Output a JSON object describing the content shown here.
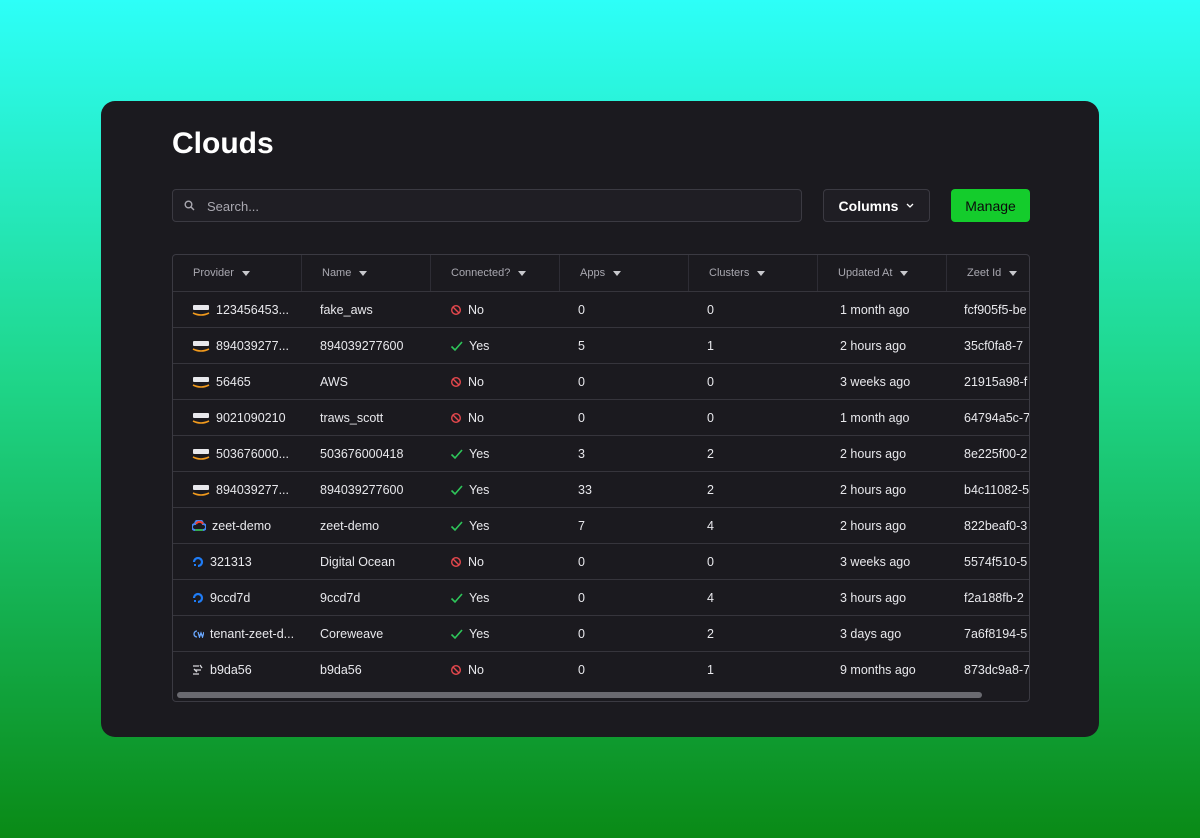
{
  "header": {
    "title": "Clouds"
  },
  "toolbar": {
    "search_placeholder": "Search...",
    "columns_button": "Columns",
    "manage_button": "Manage"
  },
  "table": {
    "columns": [
      "Provider",
      "Name",
      "Connected?",
      "Apps",
      "Clusters",
      "Updated At",
      "Zeet Id"
    ],
    "rows": [
      [
        "123456453...",
        "fake_aws",
        "No",
        0,
        0,
        "1 month ago",
        "fcf905f5-be"
      ],
      [
        "894039277...",
        "894039277600",
        "Yes",
        5,
        1,
        "2 hours ago",
        "35cf0fa8-7"
      ],
      [
        "56465",
        "AWS",
        "No",
        0,
        0,
        "3 weeks ago",
        "21915a98-f"
      ],
      [
        "9021090210",
        "traws_scott",
        "No",
        0,
        0,
        "1 month ago",
        "64794a5c-7"
      ],
      [
        "503676000...",
        "503676000418",
        "Yes",
        3,
        2,
        "2 hours ago",
        "8e225f00-2"
      ],
      [
        "894039277...",
        "894039277600",
        "Yes",
        33,
        2,
        "2 hours ago",
        "b4c11082-5"
      ],
      [
        "zeet-demo",
        "zeet-demo",
        "Yes",
        7,
        4,
        "2 hours ago",
        "822beaf0-3"
      ],
      [
        "321313",
        "Digital Ocean",
        "No",
        0,
        0,
        "3 weeks ago",
        "5574f510-5"
      ],
      [
        "9ccd7d",
        "9ccd7d",
        "Yes",
        0,
        4,
        "3 hours ago",
        "f2a188fb-2"
      ],
      [
        "tenant-zeet-d...",
        "Coreweave",
        "Yes",
        0,
        2,
        "3 days ago",
        "7a6f8194-5"
      ],
      [
        "b9da56",
        "b9da56",
        "No",
        0,
        1,
        "9 months ago",
        "873dc9a8-7"
      ]
    ]
  }
}
